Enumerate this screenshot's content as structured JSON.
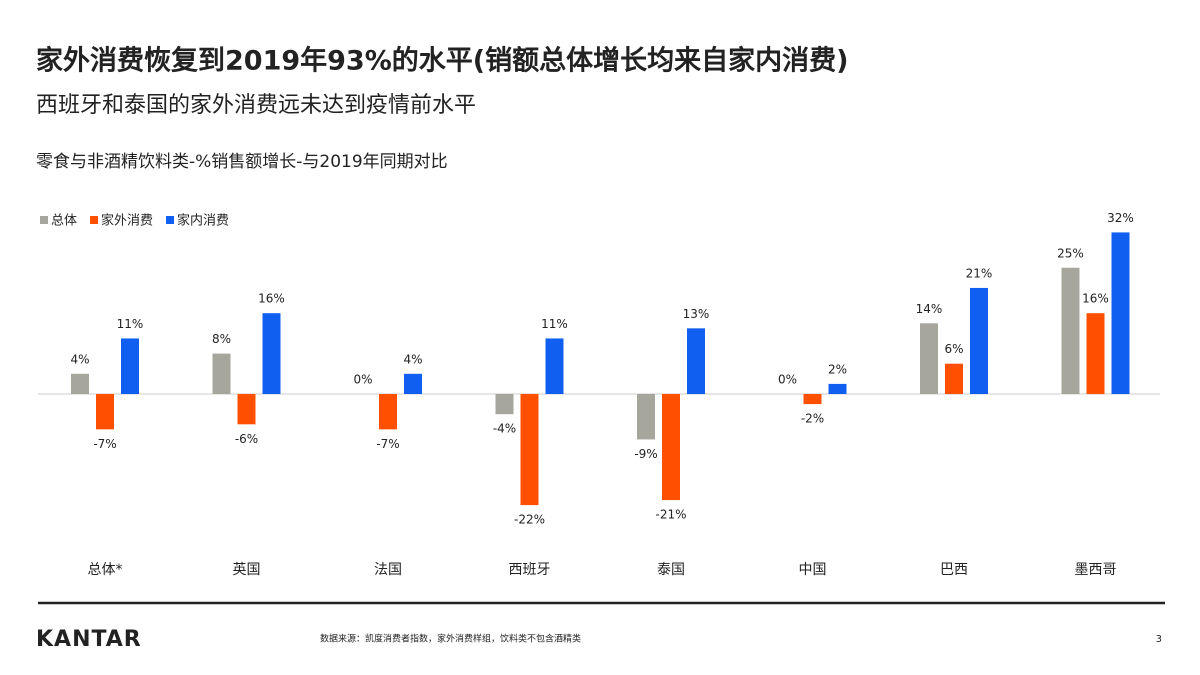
{
  "header": {
    "title": "家外消费恢复到2019年93%的水平(销额总体增长均来自家内消费)",
    "subtitle": "西班牙和泰国的家外消费远未达到疫情前水平"
  },
  "chart_data": {
    "type": "bar",
    "title": "零食与非酒精饮料类-%销售额增长-与2019年同期对比",
    "categories": [
      "总体*",
      "英国",
      "法国",
      "西班牙",
      "泰国",
      "中国",
      "巴西",
      "墨西哥"
    ],
    "series": [
      {
        "name": "总体",
        "color": "#a6a69c",
        "values": [
          4,
          8,
          0,
          -4,
          -9,
          0,
          14,
          25
        ],
        "value_labels": [
          "4%",
          "8%",
          "0%",
          "-4%",
          "-9%",
          "0%",
          "14%",
          "25%"
        ]
      },
      {
        "name": "家外消费",
        "color": "#fe5000",
        "values": [
          -7,
          -6,
          -7,
          -22,
          -21,
          -2,
          6,
          16
        ],
        "value_labels": [
          "-7%",
          "-6%",
          "-7%",
          "-22%",
          "-21%",
          "-2%",
          "6%",
          "16%"
        ]
      },
      {
        "name": "家内消费",
        "color": "#105ff0",
        "values": [
          11,
          16,
          4,
          11,
          13,
          2,
          21,
          32
        ],
        "value_labels": [
          "11%",
          "16%",
          "4%",
          "11%",
          "13%",
          "2%",
          "21%",
          "32%"
        ]
      }
    ],
    "legend": "top-left"
  },
  "footer": {
    "brand": "KANTAR",
    "source": "数据来源：凯度消费者指数，家外消费样组，饮料类不包含酒精类",
    "page": "3"
  }
}
